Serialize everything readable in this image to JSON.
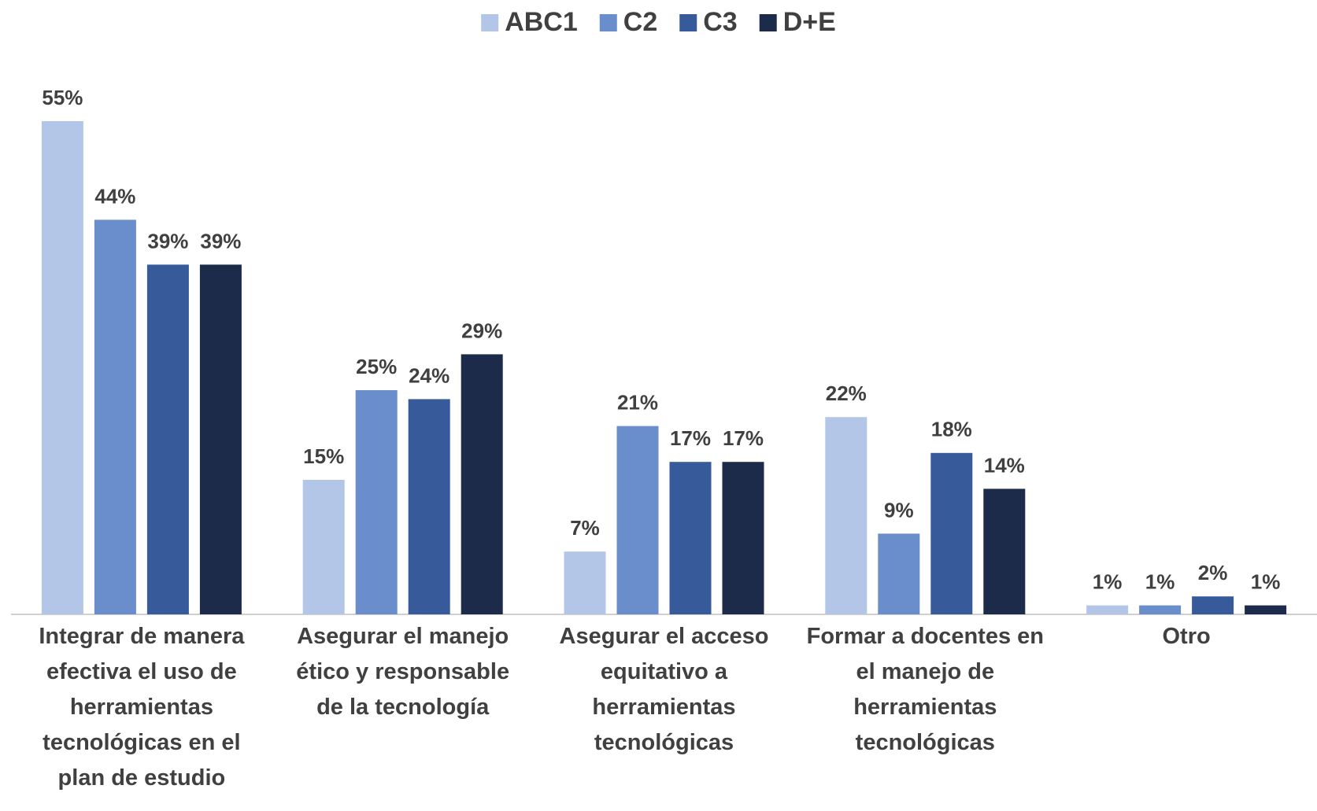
{
  "chart_data": {
    "type": "bar",
    "categories": [
      "Integrar de manera efectiva el uso de herramientas tecnológicas en el plan de estudio",
      "Asegurar el manejo ético y responsable de la tecnología",
      "Asegurar el acceso equitativo a herramientas tecnológicas",
      "Formar a docentes en el manejo de herramientas tecnológicas",
      "Otro"
    ],
    "series": [
      {
        "name": "ABC1",
        "color": "#b4c6e7",
        "values": [
          55,
          15,
          7,
          22,
          1
        ],
        "value_labels": [
          "55%",
          "15%",
          "7%",
          "22%",
          "1%"
        ]
      },
      {
        "name": "C2",
        "color": "#6a8dcb",
        "values": [
          44,
          25,
          21,
          9,
          1
        ],
        "value_labels": [
          "44%",
          "25%",
          "21%",
          "9%",
          "1%"
        ]
      },
      {
        "name": "C3",
        "color": "#365a9a",
        "values": [
          39,
          24,
          17,
          18,
          2
        ],
        "value_labels": [
          "39%",
          "24%",
          "17%",
          "18%",
          "2%"
        ]
      },
      {
        "name": "D+E",
        "color": "#1d2b4a",
        "values": [
          39,
          29,
          17,
          14,
          1
        ],
        "value_labels": [
          "39%",
          "29%",
          "17%",
          "14%",
          "1%"
        ]
      }
    ],
    "ylim": [
      0,
      60
    ],
    "legend": "top"
  }
}
